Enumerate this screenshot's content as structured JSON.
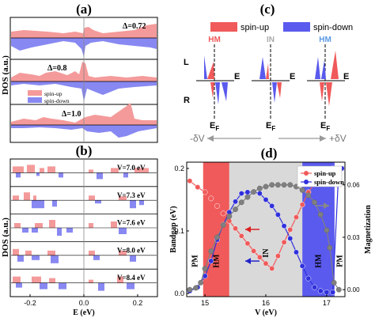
{
  "colors": {
    "spin_up": "#f05a5a",
    "spin_down": "#5a5aee",
    "spin_up_fill": "#f49a9a",
    "spin_down_fill": "#8888f2",
    "in_region": "#d9d9d9",
    "magnetization": "#808080",
    "arrow_gray": "#999999"
  },
  "panel_a": {
    "label": "(a)",
    "ylabel": "DOS (a.u.)",
    "legend_up": "spin-up",
    "legend_down": "spin-down",
    "rows": [
      {
        "label": "Δ=0.72"
      },
      {
        "label": "Δ=0.8"
      },
      {
        "label": "Δ=1.0"
      }
    ]
  },
  "panel_b": {
    "label": "(b)",
    "ylabel": "DOS (a.u.)",
    "xlabel": "E (eV)",
    "xticks": [
      "-0.2",
      "0.0",
      "0.2"
    ],
    "rows": [
      {
        "label": "V=7.0 eV"
      },
      {
        "label": "V=7.3 eV"
      },
      {
        "label": "V=7.6 eV"
      },
      {
        "label": "V=8.0 eV"
      },
      {
        "label": "V=8.4 eV"
      }
    ]
  },
  "panel_c": {
    "label": "(c)",
    "legend_up": "spin-up",
    "legend_down": "spin-down",
    "bands": [
      {
        "label": "HM",
        "kind": "up"
      },
      {
        "label": "IN",
        "kind": "none"
      },
      {
        "label": "HM",
        "kind": "down"
      }
    ],
    "side_L": "L",
    "side_R": "R",
    "energy_label": "E",
    "fermi_label": "E",
    "fermi_sub": "F",
    "arrow_left": "-δV",
    "arrow_right": "+δV"
  },
  "panel_d": {
    "label": "(d)",
    "chart_data": {
      "type": "line",
      "xlabel": "V (eV)",
      "ylabel_left": "Bandgap (eV)",
      "ylabel_right": "Magnetization",
      "xlim": [
        14.7,
        17.3
      ],
      "ylim_left": [
        -0.005,
        0.21
      ],
      "ylim_right": [
        -0.004,
        0.073
      ],
      "xticks": [
        "15",
        "16",
        "17"
      ],
      "yticks_left": [
        "0.0",
        "0.1",
        "0.2"
      ],
      "yticks_right": [
        "0.00",
        "0.03",
        "0.06"
      ],
      "regions": [
        {
          "label": "PM",
          "x0": 14.7,
          "x1": 14.97,
          "color": "#ffffff"
        },
        {
          "label": "HM",
          "x0": 14.97,
          "x1": 15.4,
          "color": "#f05a5a"
        },
        {
          "label": "IN",
          "x0": 15.4,
          "x1": 16.6,
          "color": "#d9d9d9"
        },
        {
          "label": "HM",
          "x0": 16.6,
          "x1": 17.13,
          "color": "#5a5aee"
        },
        {
          "label": "PM",
          "x0": 17.13,
          "x1": 17.3,
          "color": "#ffffff"
        }
      ],
      "series": [
        {
          "name": "spin-up",
          "axis": "left",
          "color": "#f05a5a",
          "x": [
            14.75,
            14.88,
            15.0,
            15.1,
            15.2,
            15.3,
            15.4,
            15.5,
            15.6,
            15.7,
            15.8,
            15.9,
            16.0,
            16.1,
            16.2,
            16.3,
            16.4,
            16.5,
            16.6,
            16.7,
            16.8,
            16.9,
            17.0,
            17.1,
            17.25
          ],
          "y": [
            0.18,
            0.17,
            0.162,
            0.152,
            0.14,
            0.128,
            0.116,
            0.104,
            0.092,
            0.08,
            0.068,
            0.058,
            0.048,
            0.04,
            0.06,
            0.082,
            0.102,
            0.122,
            0.142,
            0.162,
            0.176,
            0.186,
            0.194,
            0.2,
            0.2
          ]
        },
        {
          "name": "spin-down",
          "axis": "left",
          "color": "#3030dd",
          "x": [
            14.75,
            14.88,
            15.0,
            15.1,
            15.2,
            15.3,
            15.4,
            15.5,
            15.6,
            15.7,
            15.8,
            15.9,
            16.0,
            16.1,
            16.2,
            16.3,
            16.4,
            16.5,
            16.6,
            16.7,
            16.8,
            16.9,
            17.0,
            17.1,
            17.2,
            17.25
          ],
          "y": [
            0.004,
            0.01,
            0.028,
            0.052,
            0.086,
            0.11,
            0.13,
            0.147,
            0.16,
            0.162,
            0.162,
            0.16,
            0.15,
            0.14,
            0.126,
            0.108,
            0.088,
            0.066,
            0.044,
            0.024,
            0.01,
            0.004,
            0.002,
            0.002,
            0.2,
            0.2
          ]
        },
        {
          "name": "",
          "axis": "right",
          "color": "#808080",
          "x": [
            14.75,
            14.85,
            14.93,
            15.0,
            15.1,
            15.2,
            15.3,
            15.4,
            15.5,
            15.6,
            15.7,
            15.8,
            15.9,
            16.0,
            16.1,
            16.2,
            16.3,
            16.4,
            16.5,
            16.6,
            16.7,
            16.8,
            16.9,
            17.0,
            17.05,
            17.12,
            17.2
          ],
          "y": [
            0.0,
            0.001,
            0.004,
            0.012,
            0.022,
            0.03,
            0.037,
            0.042,
            0.046,
            0.05,
            0.053,
            0.056,
            0.058,
            0.059,
            0.06,
            0.06,
            0.06,
            0.06,
            0.059,
            0.057,
            0.054,
            0.05,
            0.043,
            0.034,
            0.024,
            0.004,
            0.0
          ]
        }
      ],
      "region_labels": [
        "PM",
        "HM",
        "IN",
        "HM",
        "PM"
      ],
      "legend": [
        "spin-up",
        "spin-down"
      ]
    }
  }
}
